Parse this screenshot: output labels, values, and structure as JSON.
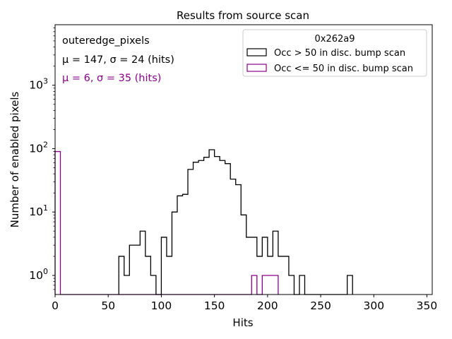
{
  "chart_data": {
    "type": "histogram",
    "title": "Results from source scan",
    "xlabel": "Hits",
    "ylabel": "Number of enabled pixels",
    "xlim": [
      0,
      355
    ],
    "ylim": [
      0.5,
      9000
    ],
    "yscale": "log",
    "bin_width": 5,
    "xticks": [
      0,
      50,
      100,
      150,
      200,
      250,
      300,
      350
    ],
    "xtick_labels": [
      "0",
      "50",
      "100",
      "150",
      "200",
      "250",
      "300",
      "350"
    ],
    "yticks": [
      1,
      10,
      100,
      1000
    ],
    "ytick_labels": [
      {
        "base": "10",
        "exp": "0"
      },
      {
        "base": "10",
        "exp": "1"
      },
      {
        "base": "10",
        "exp": "2"
      },
      {
        "base": "10",
        "exp": "3"
      }
    ],
    "annotations": [
      {
        "text": "outeredge_pixels",
        "color": "#000000"
      },
      {
        "text": "μ = 147, σ = 24 (hits)",
        "color": "#000000"
      },
      {
        "text": "μ = 6, σ = 35 (hits)",
        "color": "#8b008b"
      }
    ],
    "legend": {
      "title": "0x262a9",
      "position": "top-right",
      "entries": [
        {
          "label": "Occ > 50 in disc. bump scan",
          "color": "#000000"
        },
        {
          "label": "Occ <= 50 in disc. bump scan",
          "color": "#8b008b"
        }
      ]
    },
    "series": [
      {
        "name": "Occ > 50 in disc. bump scan",
        "color": "#000000",
        "bin_edges": [
          60,
          65,
          70,
          75,
          80,
          85,
          90,
          95,
          100,
          105,
          110,
          115,
          120,
          125,
          130,
          135,
          140,
          145,
          150,
          155,
          160,
          165,
          170,
          175,
          180,
          185,
          190,
          195,
          200,
          205,
          210,
          215,
          220,
          225,
          230,
          235,
          240,
          245,
          250,
          255,
          260,
          265,
          270,
          275,
          280
        ],
        "counts": [
          2,
          1,
          3,
          3,
          5,
          2,
          1,
          0,
          4,
          2,
          10,
          18,
          19,
          47,
          61,
          65,
          73,
          96,
          75,
          65,
          58,
          33,
          27,
          9,
          4,
          4,
          2,
          4,
          2,
          5,
          2,
          2,
          1,
          0,
          1,
          0,
          0,
          0,
          0,
          0,
          0,
          0,
          0,
          1
        ]
      },
      {
        "name": "Occ <= 50 in disc. bump scan",
        "color": "#8b008b",
        "bin_edges": [
          0,
          5,
          10,
          15,
          20,
          25,
          30,
          35,
          40,
          45,
          50,
          55,
          60,
          65,
          70,
          75,
          80,
          85,
          90,
          95,
          100,
          105,
          110,
          115,
          120,
          125,
          130,
          135,
          140,
          145,
          150,
          155,
          160,
          165,
          170,
          175,
          180,
          185,
          190,
          195,
          200,
          205,
          210
        ],
        "counts": [
          90,
          0,
          0,
          0,
          0,
          0,
          0,
          0,
          0,
          0,
          0,
          0,
          0,
          0,
          0,
          0,
          0,
          0,
          0,
          0,
          0,
          0,
          0,
          0,
          0,
          0,
          0,
          0,
          0,
          0,
          0,
          0,
          0,
          0,
          0,
          0,
          0,
          1,
          0,
          1,
          1,
          1
        ]
      }
    ]
  }
}
